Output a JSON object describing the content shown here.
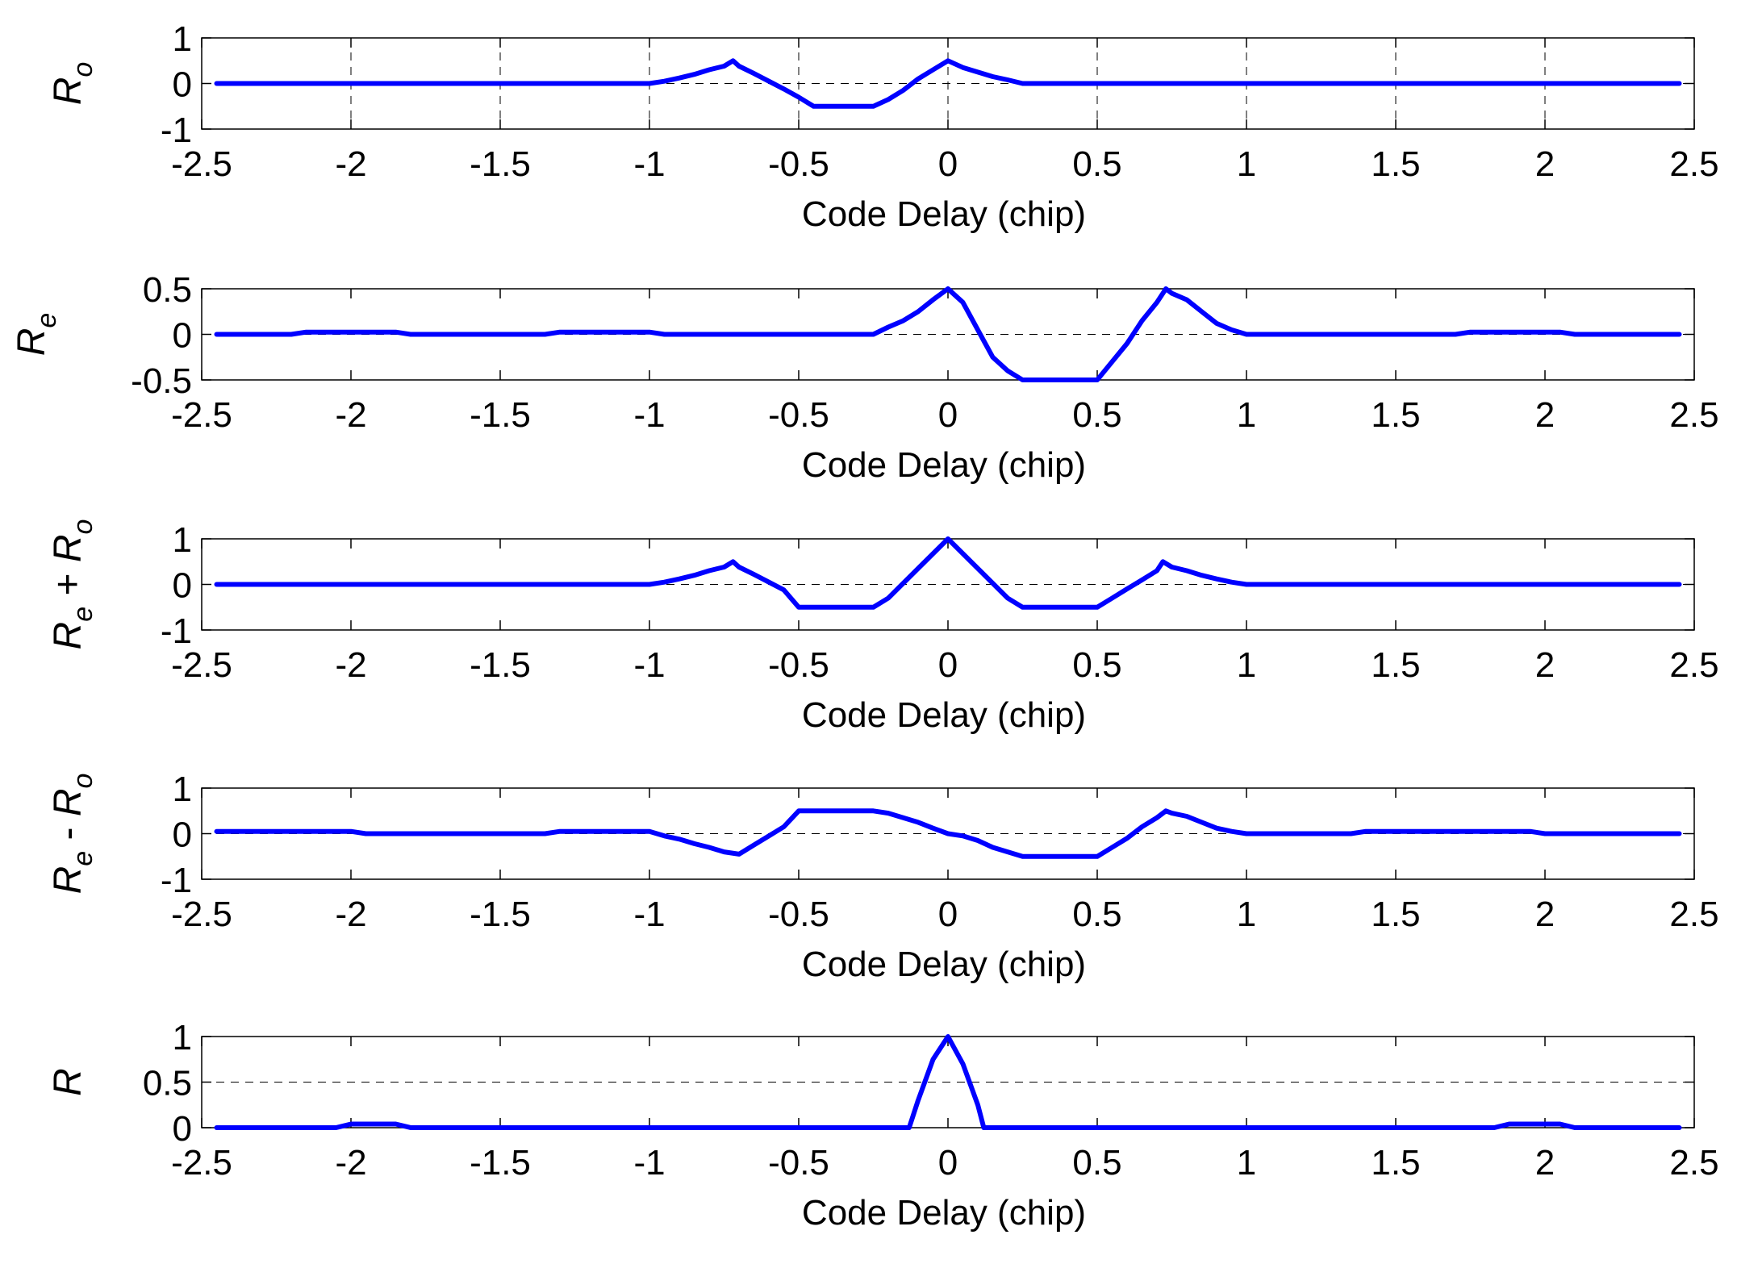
{
  "chart_data": [
    {
      "type": "line",
      "ylabel_main": "R",
      "ylabel_sub": "o",
      "xlabel": "Code Delay (chip)",
      "xlim": [
        -2.5,
        2.5
      ],
      "ylim": [
        -1,
        1
      ],
      "xticks": [
        "-2.5",
        "-2",
        "-1.5",
        "-1",
        "-0.5",
        "0",
        "0.5",
        "1",
        "1.5",
        "2",
        "2.5"
      ],
      "yticks": [
        "-1",
        "0",
        "1"
      ],
      "dashed_y": 0,
      "grid_x": true,
      "color": "#0000ff",
      "x": [
        -2.45,
        -1.0,
        -0.95,
        -0.9,
        -0.85,
        -0.8,
        -0.75,
        -0.72,
        -0.7,
        -0.65,
        -0.6,
        -0.55,
        -0.5,
        -0.45,
        -0.4,
        -0.3,
        -0.25,
        -0.2,
        -0.15,
        -0.1,
        -0.05,
        0.0,
        0.05,
        0.1,
        0.15,
        0.2,
        0.25,
        2.45
      ],
      "y": [
        0,
        0,
        0.05,
        0.12,
        0.2,
        0.3,
        0.38,
        0.5,
        0.38,
        0.22,
        0.05,
        -0.12,
        -0.3,
        -0.5,
        -0.5,
        -0.5,
        -0.5,
        -0.35,
        -0.15,
        0.1,
        0.3,
        0.5,
        0.35,
        0.25,
        0.15,
        0.08,
        0,
        0
      ]
    },
    {
      "type": "line",
      "ylabel_main": "R",
      "ylabel_sub": "e",
      "xlabel": "Code Delay (chip)",
      "xlim": [
        -2.5,
        2.5
      ],
      "ylim": [
        -0.5,
        0.5
      ],
      "xticks": [
        "-2.5",
        "-2",
        "-1.5",
        "-1",
        "-0.5",
        "0",
        "0.5",
        "1",
        "1.5",
        "2",
        "2.5"
      ],
      "yticks": [
        "-0.5",
        "0",
        "0.5"
      ],
      "dashed_y": 0,
      "grid_x": false,
      "color": "#0000ff",
      "x": [
        -2.45,
        -2.2,
        -2.15,
        -1.85,
        -1.8,
        -1.35,
        -1.3,
        -1.0,
        -0.95,
        -0.25,
        -0.2,
        -0.15,
        -0.1,
        -0.05,
        0.0,
        0.05,
        0.1,
        0.15,
        0.2,
        0.25,
        0.5,
        0.55,
        0.6,
        0.65,
        0.7,
        0.73,
        0.75,
        0.8,
        0.85,
        0.9,
        0.95,
        1.0,
        1.7,
        1.75,
        2.05,
        2.1,
        2.45
      ],
      "y": [
        0,
        0,
        0.025,
        0.025,
        0,
        0,
        0.025,
        0.025,
        0,
        0,
        0.08,
        0.15,
        0.25,
        0.38,
        0.5,
        0.35,
        0.05,
        -0.25,
        -0.4,
        -0.5,
        -0.5,
        -0.3,
        -0.1,
        0.15,
        0.35,
        0.5,
        0.45,
        0.38,
        0.25,
        0.12,
        0.05,
        0,
        0,
        0.025,
        0.025,
        0,
        0
      ]
    },
    {
      "type": "line",
      "ylabel_main": "R",
      "ylabel_sub": "e",
      "ylabel_op": " + ",
      "ylabel_main2": "R",
      "ylabel_sub2": "o",
      "xlabel": "Code Delay (chip)",
      "xlim": [
        -2.5,
        2.5
      ],
      "ylim": [
        -1,
        1
      ],
      "xticks": [
        "-2.5",
        "-2",
        "-1.5",
        "-1",
        "-0.5",
        "0",
        "0.5",
        "1",
        "1.5",
        "2",
        "2.5"
      ],
      "yticks": [
        "-1",
        "0",
        "1"
      ],
      "dashed_y": 0,
      "grid_x": false,
      "color": "#0000ff",
      "x": [
        -2.45,
        -1.0,
        -0.95,
        -0.9,
        -0.85,
        -0.8,
        -0.75,
        -0.72,
        -0.7,
        -0.65,
        -0.6,
        -0.55,
        -0.5,
        -0.25,
        -0.2,
        0.0,
        0.2,
        0.25,
        0.5,
        0.55,
        0.6,
        0.65,
        0.7,
        0.72,
        0.75,
        0.8,
        0.85,
        0.9,
        0.95,
        1.0,
        2.45
      ],
      "y": [
        0,
        0,
        0.05,
        0.12,
        0.2,
        0.3,
        0.38,
        0.5,
        0.38,
        0.22,
        0.05,
        -0.12,
        -0.5,
        -0.5,
        -0.3,
        1.0,
        -0.3,
        -0.5,
        -0.5,
        -0.3,
        -0.1,
        0.1,
        0.3,
        0.5,
        0.38,
        0.3,
        0.2,
        0.12,
        0.05,
        0,
        0
      ]
    },
    {
      "type": "line",
      "ylabel_main": "R",
      "ylabel_sub": "e",
      "ylabel_op": " - ",
      "ylabel_main2": "R",
      "ylabel_sub2": "o",
      "xlabel": "Code Delay (chip)",
      "xlim": [
        -2.5,
        2.5
      ],
      "ylim": [
        -1,
        1
      ],
      "xticks": [
        "-2.5",
        "-2",
        "-1.5",
        "-1",
        "-0.5",
        "0",
        "0.5",
        "1",
        "1.5",
        "2",
        "2.5"
      ],
      "yticks": [
        "-1",
        "0",
        "1"
      ],
      "dashed_y": 0,
      "grid_x": false,
      "color": "#0000ff",
      "x": [
        -2.45,
        -2.0,
        -1.95,
        -1.35,
        -1.3,
        -1.0,
        -0.95,
        -0.9,
        -0.85,
        -0.8,
        -0.75,
        -0.7,
        -0.65,
        -0.6,
        -0.55,
        -0.5,
        -0.25,
        -0.2,
        -0.15,
        -0.1,
        -0.05,
        0.0,
        0.05,
        0.1,
        0.15,
        0.2,
        0.25,
        0.5,
        0.55,
        0.6,
        0.65,
        0.7,
        0.73,
        0.75,
        0.8,
        0.85,
        0.9,
        0.95,
        1.0,
        1.35,
        1.4,
        1.95,
        2.0,
        2.45
      ],
      "y": [
        0.05,
        0.05,
        0,
        0,
        0.05,
        0.05,
        -0.05,
        -0.12,
        -0.22,
        -0.3,
        -0.4,
        -0.45,
        -0.25,
        -0.05,
        0.15,
        0.5,
        0.5,
        0.45,
        0.35,
        0.25,
        0.12,
        0,
        -0.05,
        -0.15,
        -0.3,
        -0.4,
        -0.5,
        -0.5,
        -0.3,
        -0.1,
        0.15,
        0.35,
        0.5,
        0.45,
        0.38,
        0.25,
        0.12,
        0.05,
        0,
        0,
        0.05,
        0.05,
        0,
        0
      ]
    },
    {
      "type": "line",
      "ylabel_main": "R",
      "ylabel_sub": "",
      "xlabel": "Code Delay (chip)",
      "xlim": [
        -2.5,
        2.5
      ],
      "ylim": [
        0,
        1
      ],
      "xticks": [
        "-2.5",
        "-2",
        "-1.5",
        "-1",
        "-0.5",
        "0",
        "0.5",
        "1",
        "1.5",
        "2",
        "2.5"
      ],
      "yticks": [
        "0",
        "0.5",
        "1"
      ],
      "dashed_y": 0.5,
      "grid_x": false,
      "color": "#0000ff",
      "x": [
        -2.45,
        -2.05,
        -2.0,
        -1.85,
        -1.8,
        -0.13,
        -0.1,
        -0.05,
        0.0,
        0.05,
        0.1,
        0.12,
        1.83,
        1.88,
        2.05,
        2.1,
        2.45
      ],
      "y": [
        0,
        0,
        0.04,
        0.04,
        0,
        0,
        0.3,
        0.75,
        1.0,
        0.7,
        0.25,
        0,
        0,
        0.04,
        0.04,
        0,
        0
      ]
    }
  ]
}
